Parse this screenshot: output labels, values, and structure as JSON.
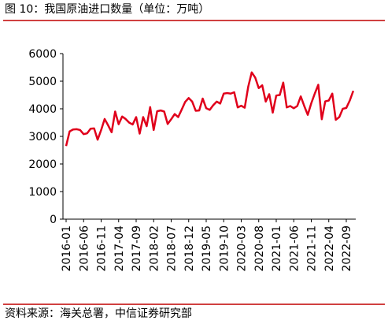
{
  "chart_data": {
    "type": "line",
    "title": "图 10：我国原油进口数量（单位：万吨）",
    "source": "资料来源：海关总署，中信证券研究部",
    "categories": [
      "2016-01",
      null,
      null,
      null,
      null,
      "2016-06",
      null,
      null,
      null,
      null,
      "2016-11",
      null,
      null,
      null,
      null,
      "2017-04",
      null,
      null,
      null,
      null,
      "2017-09",
      null,
      null,
      null,
      null,
      "2018-02",
      null,
      null,
      null,
      null,
      "2018-07",
      null,
      null,
      null,
      null,
      "2018-12",
      null,
      null,
      null,
      null,
      "2019-05",
      null,
      null,
      null,
      null,
      "2019-10",
      null,
      null,
      null,
      null,
      "2020-03",
      null,
      null,
      null,
      null,
      "2020-08",
      null,
      null,
      null,
      null,
      "2021-01",
      null,
      null,
      null,
      null,
      "2021-06",
      null,
      null,
      null,
      null,
      "2021-11",
      null,
      null,
      null,
      null,
      "2022-04",
      null,
      null,
      null,
      null,
      "2022-09",
      null,
      null
    ],
    "series": [
      {
        "color": "#e0001b",
        "values": [
          2650,
          3180,
          3250,
          3260,
          3230,
          3080,
          3110,
          3280,
          3290,
          2880,
          3230,
          3630,
          3400,
          3150,
          3900,
          3440,
          3720,
          3630,
          3500,
          3430,
          3700,
          3100,
          3700,
          3370,
          4060,
          3230,
          3910,
          3940,
          3900,
          3450,
          3620,
          3810,
          3700,
          3970,
          4250,
          4390,
          4260,
          3930,
          3940,
          4370,
          4020,
          3960,
          4130,
          4260,
          4190,
          4550,
          4570,
          4550,
          4600,
          4050,
          4110,
          4040,
          4800,
          5320,
          5130,
          4750,
          4850,
          4260,
          4530,
          3860,
          4480,
          4500,
          4950,
          4050,
          4100,
          4020,
          4100,
          4450,
          4100,
          3780,
          4200,
          4550,
          4870,
          3620,
          4270,
          4300,
          4550,
          3600,
          3700,
          4000,
          4030,
          4300,
          4650
        ]
      }
    ],
    "ylim": [
      0,
      6000
    ],
    "yticks": [
      0,
      1000,
      2000,
      3000,
      4000,
      5000,
      6000
    ],
    "grid": false
  }
}
